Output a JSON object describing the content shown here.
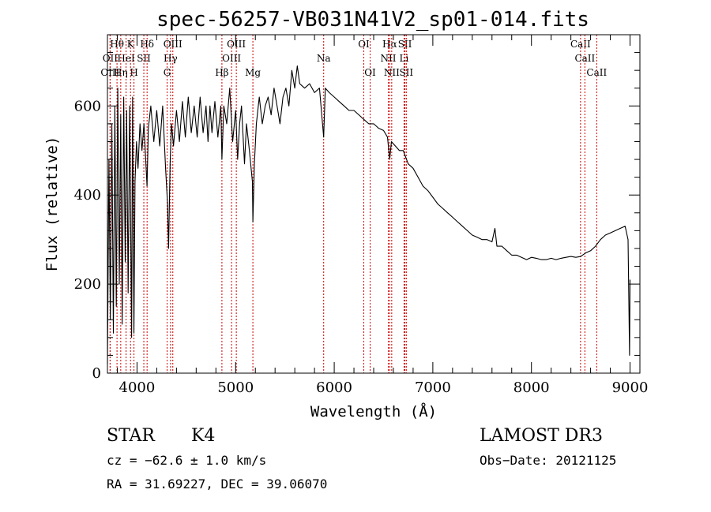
{
  "chart_data": {
    "type": "line",
    "title": "spec-56257-VB031N41V2_sp01-014.fits",
    "xlabel": "Wavelength (Å)",
    "ylabel": "Flux (relative)",
    "xlim": [
      3700,
      9100
    ],
    "ylim": [
      0,
      760
    ],
    "xticks": [
      4000,
      5000,
      6000,
      7000,
      8000,
      9000
    ],
    "yticks": [
      0,
      200,
      400,
      600
    ],
    "grid": false,
    "series": [
      {
        "name": "flux",
        "points": [
          [
            3700,
            20
          ],
          [
            3715,
            480
          ],
          [
            3730,
            120
          ],
          [
            3745,
            560
          ],
          [
            3760,
            90
          ],
          [
            3775,
            600
          ],
          [
            3790,
            150
          ],
          [
            3805,
            640
          ],
          [
            3820,
            200
          ],
          [
            3835,
            580
          ],
          [
            3850,
            110
          ],
          [
            3865,
            620
          ],
          [
            3880,
            250
          ],
          [
            3895,
            590
          ],
          [
            3910,
            180
          ],
          [
            3925,
            600
          ],
          [
            3935,
            350
          ],
          [
            3945,
            80
          ],
          [
            3955,
            620
          ],
          [
            3968,
            90
          ],
          [
            3980,
            430
          ],
          [
            3995,
            520
          ],
          [
            4010,
            460
          ],
          [
            4030,
            560
          ],
          [
            4050,
            500
          ],
          [
            4070,
            560
          ],
          [
            4090,
            470
          ],
          [
            4101,
            420
          ],
          [
            4115,
            550
          ],
          [
            4140,
            600
          ],
          [
            4170,
            520
          ],
          [
            4200,
            590
          ],
          [
            4230,
            510
          ],
          [
            4260,
            600
          ],
          [
            4290,
            460
          ],
          [
            4310,
            380
          ],
          [
            4320,
            280
          ],
          [
            4335,
            470
          ],
          [
            4350,
            560
          ],
          [
            4370,
            510
          ],
          [
            4400,
            590
          ],
          [
            4430,
            520
          ],
          [
            4460,
            610
          ],
          [
            4490,
            530
          ],
          [
            4520,
            620
          ],
          [
            4550,
            540
          ],
          [
            4580,
            600
          ],
          [
            4610,
            530
          ],
          [
            4640,
            620
          ],
          [
            4670,
            540
          ],
          [
            4700,
            600
          ],
          [
            4720,
            520
          ],
          [
            4740,
            600
          ],
          [
            4760,
            540
          ],
          [
            4790,
            610
          ],
          [
            4820,
            530
          ],
          [
            4850,
            600
          ],
          [
            4861,
            480
          ],
          [
            4880,
            600
          ],
          [
            4910,
            560
          ],
          [
            4940,
            640
          ],
          [
            4970,
            520
          ],
          [
            5000,
            590
          ],
          [
            5020,
            480
          ],
          [
            5040,
            560
          ],
          [
            5060,
            600
          ],
          [
            5090,
            470
          ],
          [
            5110,
            560
          ],
          [
            5140,
            500
          ],
          [
            5170,
            430
          ],
          [
            5175,
            340
          ],
          [
            5190,
            470
          ],
          [
            5210,
            560
          ],
          [
            5240,
            620
          ],
          [
            5270,
            560
          ],
          [
            5300,
            600
          ],
          [
            5330,
            620
          ],
          [
            5360,
            580
          ],
          [
            5390,
            640
          ],
          [
            5420,
            600
          ],
          [
            5450,
            560
          ],
          [
            5480,
            620
          ],
          [
            5510,
            640
          ],
          [
            5540,
            600
          ],
          [
            5570,
            680
          ],
          [
            5600,
            640
          ],
          [
            5625,
            690
          ],
          [
            5650,
            650
          ],
          [
            5700,
            640
          ],
          [
            5750,
            650
          ],
          [
            5800,
            630
          ],
          [
            5850,
            640
          ],
          [
            5893,
            530
          ],
          [
            5910,
            640
          ],
          [
            5950,
            630
          ],
          [
            6000,
            620
          ],
          [
            6050,
            610
          ],
          [
            6100,
            600
          ],
          [
            6150,
            590
          ],
          [
            6200,
            590
          ],
          [
            6250,
            580
          ],
          [
            6300,
            570
          ],
          [
            6350,
            560
          ],
          [
            6400,
            560
          ],
          [
            6450,
            550
          ],
          [
            6500,
            545
          ],
          [
            6540,
            530
          ],
          [
            6563,
            480
          ],
          [
            6580,
            520
          ],
          [
            6620,
            510
          ],
          [
            6660,
            500
          ],
          [
            6700,
            500
          ],
          [
            6750,
            470
          ],
          [
            6800,
            460
          ],
          [
            6850,
            440
          ],
          [
            6900,
            420
          ],
          [
            6950,
            410
          ],
          [
            7000,
            395
          ],
          [
            7050,
            380
          ],
          [
            7100,
            370
          ],
          [
            7150,
            360
          ],
          [
            7200,
            350
          ],
          [
            7250,
            340
          ],
          [
            7300,
            330
          ],
          [
            7350,
            320
          ],
          [
            7400,
            310
          ],
          [
            7450,
            305
          ],
          [
            7500,
            300
          ],
          [
            7550,
            300
          ],
          [
            7600,
            295
          ],
          [
            7630,
            325
          ],
          [
            7650,
            285
          ],
          [
            7700,
            285
          ],
          [
            7750,
            275
          ],
          [
            7800,
            265
          ],
          [
            7850,
            265
          ],
          [
            7900,
            260
          ],
          [
            7950,
            255
          ],
          [
            8000,
            260
          ],
          [
            8050,
            258
          ],
          [
            8100,
            255
          ],
          [
            8150,
            255
          ],
          [
            8200,
            258
          ],
          [
            8250,
            255
          ],
          [
            8300,
            258
          ],
          [
            8350,
            260
          ],
          [
            8400,
            262
          ],
          [
            8450,
            260
          ],
          [
            8500,
            262
          ],
          [
            8550,
            270
          ],
          [
            8600,
            275
          ],
          [
            8650,
            285
          ],
          [
            8700,
            300
          ],
          [
            8750,
            310
          ],
          [
            8800,
            315
          ],
          [
            8850,
            320
          ],
          [
            8900,
            325
          ],
          [
            8950,
            330
          ],
          [
            8980,
            300
          ],
          [
            8995,
            40
          ],
          [
            9000,
            210
          ]
        ]
      }
    ],
    "lines": [
      {
        "label": "Hθ",
        "x": 3797,
        "row": 1
      },
      {
        "label": "OII",
        "x": 3727,
        "row": 2
      },
      {
        "label": "OIII",
        "x": 3727,
        "row": 3
      },
      {
        "label": "K",
        "x": 3934,
        "row": 1
      },
      {
        "label": "HeI",
        "x": 3889,
        "row": 2
      },
      {
        "label": "Hη",
        "x": 3835,
        "row": 3
      },
      {
        "label": "SII",
        "x": 4069,
        "row": 2
      },
      {
        "label": "H",
        "x": 3969,
        "row": 3
      },
      {
        "label": "Hδ",
        "x": 4102,
        "row": 1
      },
      {
        "label": "OIII",
        "x": 4363,
        "row": 1
      },
      {
        "label": "Hγ",
        "x": 4340,
        "row": 2
      },
      {
        "label": "G",
        "x": 4305,
        "row": 3
      },
      {
        "label": "Hβ",
        "x": 4861,
        "row": 3
      },
      {
        "label": "OIII",
        "x": 5007,
        "row": 1
      },
      {
        "label": "OIII",
        "x": 4959,
        "row": 2
      },
      {
        "label": "Mg",
        "x": 5175,
        "row": 3
      },
      {
        "label": "Na",
        "x": 5893,
        "row": 2
      },
      {
        "label": "OI",
        "x": 6300,
        "row": 1
      },
      {
        "label": "OI",
        "x": 6364,
        "row": 3
      },
      {
        "label": "Hα",
        "x": 6563,
        "row": 1
      },
      {
        "label": "SII",
        "x": 6717,
        "row": 1
      },
      {
        "label": "NII",
        "x": 6548,
        "row": 2
      },
      {
        "label": "Li",
        "x": 6708,
        "row": 2
      },
      {
        "label": "NII",
        "x": 6583,
        "row": 3
      },
      {
        "label": "SII",
        "x": 6731,
        "row": 3
      },
      {
        "label": "CaII",
        "x": 8498,
        "row": 1
      },
      {
        "label": "CaII",
        "x": 8542,
        "row": 2
      },
      {
        "label": "CaII",
        "x": 8662,
        "row": 3
      }
    ]
  },
  "info": {
    "object_class": "STAR",
    "subclass": "K4",
    "survey": "LAMOST DR3",
    "velocity": "cz = −62.6 ± 1.0 km/s",
    "obs_date": "Obs−Date: 20121125",
    "coords": "RA =  31.69227, DEC =  39.06070"
  },
  "colors": {
    "spectrum": "#000000",
    "line_markers": "#cc0000",
    "frame": "#000000"
  }
}
